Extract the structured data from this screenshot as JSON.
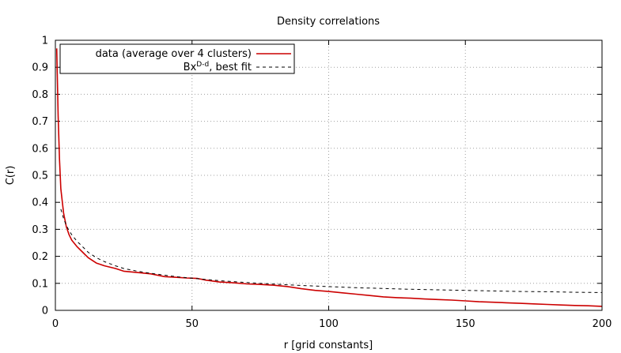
{
  "chart_data": {
    "type": "line",
    "title": "Density correlations",
    "xlabel": "r [grid constants]",
    "ylabel": "C(r)",
    "xlim": [
      0,
      200
    ],
    "ylim": [
      0,
      1
    ],
    "x_ticks": [
      0,
      50,
      100,
      150,
      200
    ],
    "y_ticks": [
      0,
      0.1,
      0.2,
      0.3,
      0.4,
      0.5,
      0.6,
      0.7,
      0.8,
      0.9,
      1
    ],
    "grid": true,
    "legend_position": "top-left",
    "series": [
      {
        "name": "data (average over 4 clusters)",
        "style": "solid",
        "color": "#cc0000",
        "points": [
          [
            0.5,
            0.97
          ],
          [
            1,
            0.72
          ],
          [
            1.5,
            0.56
          ],
          [
            2,
            0.45
          ],
          [
            3,
            0.36
          ],
          [
            4,
            0.31
          ],
          [
            5,
            0.28
          ],
          [
            6,
            0.26
          ],
          [
            8,
            0.235
          ],
          [
            10,
            0.215
          ],
          [
            12,
            0.195
          ],
          [
            15,
            0.175
          ],
          [
            18,
            0.165
          ],
          [
            22,
            0.155
          ],
          [
            25,
            0.145
          ],
          [
            30,
            0.14
          ],
          [
            35,
            0.135
          ],
          [
            40,
            0.125
          ],
          [
            45,
            0.122
          ],
          [
            48,
            0.12
          ],
          [
            52,
            0.118
          ],
          [
            55,
            0.112
          ],
          [
            60,
            0.105
          ],
          [
            65,
            0.102
          ],
          [
            70,
            0.098
          ],
          [
            75,
            0.096
          ],
          [
            80,
            0.093
          ],
          [
            85,
            0.088
          ],
          [
            90,
            0.08
          ],
          [
            95,
            0.074
          ],
          [
            100,
            0.07
          ],
          [
            105,
            0.065
          ],
          [
            110,
            0.06
          ],
          [
            115,
            0.055
          ],
          [
            120,
            0.05
          ],
          [
            125,
            0.047
          ],
          [
            130,
            0.045
          ],
          [
            135,
            0.042
          ],
          [
            140,
            0.04
          ],
          [
            145,
            0.038
          ],
          [
            150,
            0.035
          ],
          [
            155,
            0.032
          ],
          [
            160,
            0.03
          ],
          [
            165,
            0.028
          ],
          [
            170,
            0.026
          ],
          [
            175,
            0.024
          ],
          [
            180,
            0.022
          ],
          [
            185,
            0.02
          ],
          [
            190,
            0.018
          ],
          [
            195,
            0.017
          ],
          [
            200,
            0.015
          ]
        ]
      },
      {
        "name_base": "Bx",
        "name_superscript": "D-d",
        "name_suffix": ", best fit",
        "style": "dashed",
        "color": "#000000",
        "points": [
          [
            2,
            0.375
          ],
          [
            3,
            0.34
          ],
          [
            4,
            0.315
          ],
          [
            5,
            0.295
          ],
          [
            6,
            0.28
          ],
          [
            8,
            0.255
          ],
          [
            10,
            0.235
          ],
          [
            12,
            0.215
          ],
          [
            15,
            0.195
          ],
          [
            18,
            0.18
          ],
          [
            22,
            0.165
          ],
          [
            25,
            0.155
          ],
          [
            30,
            0.145
          ],
          [
            35,
            0.137
          ],
          [
            40,
            0.13
          ],
          [
            45,
            0.124
          ],
          [
            50,
            0.119
          ],
          [
            60,
            0.11
          ],
          [
            70,
            0.103
          ],
          [
            80,
            0.097
          ],
          [
            90,
            0.092
          ],
          [
            100,
            0.088
          ],
          [
            110,
            0.084
          ],
          [
            120,
            0.081
          ],
          [
            130,
            0.078
          ],
          [
            140,
            0.076
          ],
          [
            150,
            0.074
          ],
          [
            160,
            0.072
          ],
          [
            170,
            0.07
          ],
          [
            180,
            0.069
          ],
          [
            190,
            0.067
          ],
          [
            200,
            0.066
          ]
        ]
      }
    ]
  }
}
